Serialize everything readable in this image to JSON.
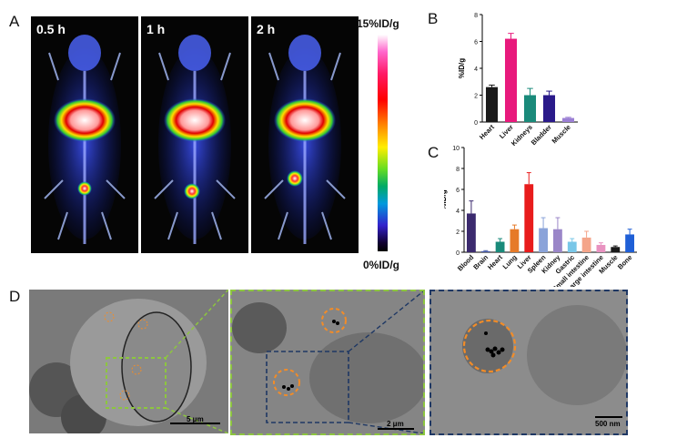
{
  "panels": {
    "a": "A",
    "b": "B",
    "c": "C",
    "d": "D"
  },
  "pet": {
    "times": [
      "0.5 h",
      "1 h",
      "2 h"
    ],
    "colorbar_max": "15%ID/g",
    "colorbar_min": "0%ID/g"
  },
  "tem": {
    "scale_1": "5 μm",
    "scale_2": "2 μm",
    "scale_3": "500 nm",
    "colors": {
      "outer_box": "#8dc63f",
      "inner_box": "#1f3864",
      "highlight": "#f28c28"
    }
  },
  "chart_data": [
    {
      "id": "B",
      "type": "bar",
      "categories": [
        "Heart",
        "Liver",
        "Kidneys",
        "Bladder",
        "Muscle"
      ],
      "values": [
        2.6,
        6.2,
        2.0,
        2.0,
        0.3
      ],
      "errors": [
        0.15,
        0.4,
        0.5,
        0.3,
        0.05
      ],
      "colors": [
        "#1a1a1a",
        "#e8197c",
        "#1a8a7a",
        "#2a1a8a",
        "#9b7fd4"
      ],
      "ylabel": "%ID/g",
      "ylim": [
        0,
        8
      ],
      "yticks": [
        0,
        2,
        4,
        6,
        8
      ]
    },
    {
      "id": "C",
      "type": "bar",
      "categories": [
        "Blood",
        "Brain",
        "Heart",
        "Lung",
        "Liver",
        "Spleen",
        "Kidney",
        "Gastric",
        "Small intestine",
        "Large intestine",
        "Muscle",
        "Bone"
      ],
      "values": [
        3.7,
        0.1,
        1.0,
        2.2,
        6.5,
        2.3,
        2.2,
        1.0,
        1.4,
        0.7,
        0.5,
        1.7
      ],
      "errors": [
        1.2,
        0.05,
        0.3,
        0.4,
        1.1,
        1.0,
        1.1,
        0.3,
        0.6,
        0.2,
        0.1,
        0.5
      ],
      "colors": [
        "#3b2a6e",
        "#4a5ea8",
        "#1a8a7a",
        "#e67a28",
        "#e81c1c",
        "#8aa3d9",
        "#9a86c8",
        "#79c7e8",
        "#f4a58a",
        "#e892c0",
        "#1a1a1a",
        "#1f5fd6"
      ],
      "ylabel": "%ID/g",
      "ylim": [
        0,
        10
      ],
      "yticks": [
        0,
        2,
        4,
        6,
        8,
        10
      ]
    }
  ]
}
